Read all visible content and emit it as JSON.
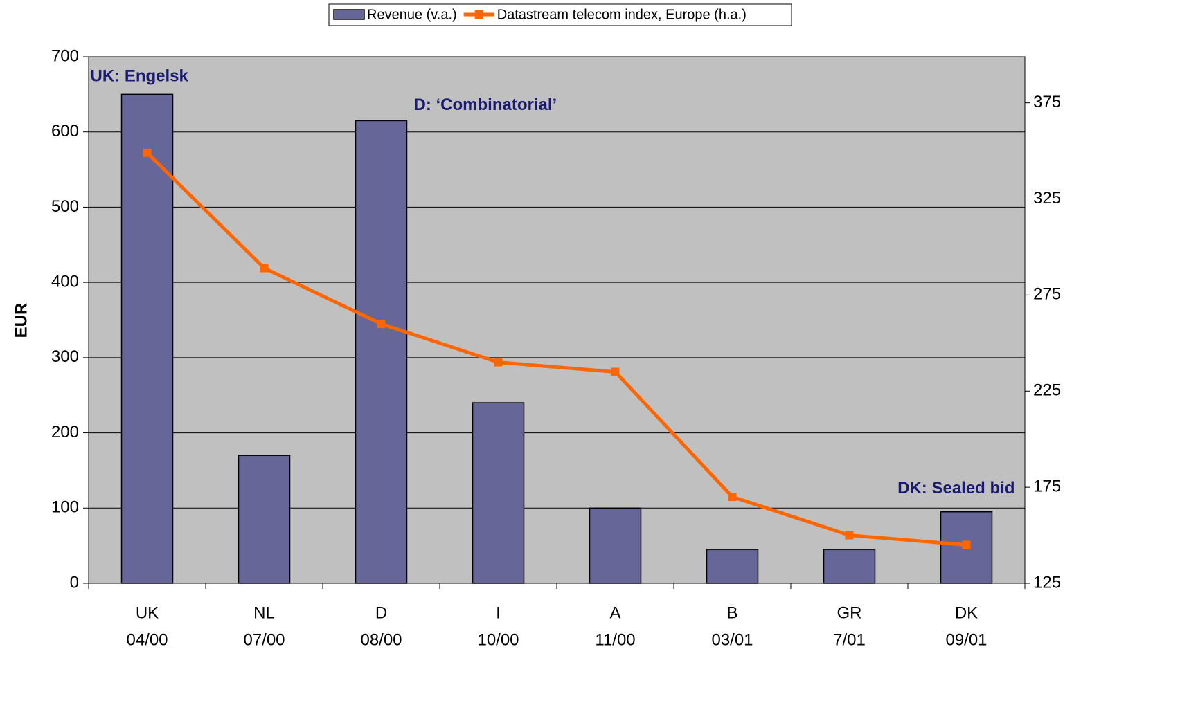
{
  "chart_data": {
    "type": "bar",
    "legend": "top",
    "ylabel": "EUR",
    "categories": [
      [
        "UK",
        "04/00"
      ],
      [
        "NL",
        "07/00"
      ],
      [
        "D",
        "08/00"
      ],
      [
        "I",
        "10/00"
      ],
      [
        "A",
        "11/00"
      ],
      [
        "B",
        "03/01"
      ],
      [
        "GR",
        "7/01"
      ],
      [
        "DK",
        "09/01"
      ]
    ],
    "series": [
      {
        "name": "Revenue (v.a.)",
        "type": "bar",
        "color": "#666699",
        "values": [
          650,
          170,
          615,
          240,
          100,
          45,
          45,
          95
        ]
      },
      {
        "name": "Datastream telecom index, Europe (h.a.)",
        "type": "line",
        "axis": "y2",
        "color": "#ff6600",
        "values": [
          349,
          289,
          260,
          240,
          235,
          170,
          150,
          145
        ]
      }
    ],
    "annotations": [
      {
        "text": "UK: Engelsk",
        "category": 0
      },
      {
        "text": "D: ‘Combinatorial’",
        "category": 2
      },
      {
        "text": "DK: Sealed bid",
        "category": 7
      }
    ],
    "ylim": [
      0,
      700
    ],
    "yticks": [
      0,
      100,
      200,
      300,
      400,
      500,
      600,
      700
    ],
    "y2lim": [
      125,
      399
    ],
    "y2ticks": [
      125,
      175,
      225,
      275,
      325,
      375
    ],
    "grid": true
  }
}
